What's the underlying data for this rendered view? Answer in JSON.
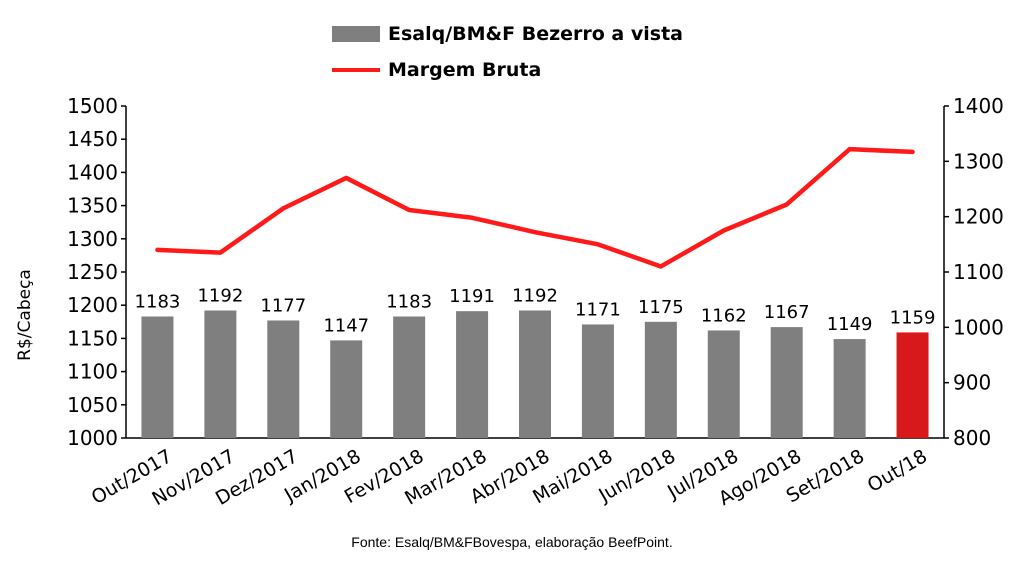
{
  "chart_data": {
    "type": "bar",
    "categories": [
      "Out/2017",
      "Nov/2017",
      "Dez/2017",
      "Jan/2018",
      "Fev/2018",
      "Mar/2018",
      "Abr/2018",
      "Mai/2018",
      "Jun/2018",
      "Jul/2018",
      "Ago/2018",
      "Set/2018",
      "Out/18"
    ],
    "series": [
      {
        "name": "Esalq/BM&F Bezerro a vista",
        "type": "bar",
        "axis": "left",
        "color": "#7f7f7f",
        "highlight_color": "#d7191c",
        "highlight_index": 12,
        "values": [
          1183,
          1192,
          1177,
          1147,
          1183,
          1191,
          1192,
          1171,
          1175,
          1162,
          1167,
          1149,
          1159
        ]
      },
      {
        "name": "Margem Bruta",
        "type": "line",
        "axis": "right",
        "color": "#ff1a1a",
        "values": [
          1140,
          1135,
          1215,
          1270,
          1212,
          1198,
          1172,
          1150,
          1110,
          1175,
          1222,
          1322,
          1317
        ]
      }
    ],
    "ylabel": "R$/Cabeça",
    "ylim": [
      1000,
      1500
    ],
    "yticks": [
      1000,
      1050,
      1100,
      1150,
      1200,
      1250,
      1300,
      1350,
      1400,
      1450,
      1500
    ],
    "y2lim": [
      800,
      1400
    ],
    "y2ticks": [
      800,
      900,
      1000,
      1100,
      1200,
      1300,
      1400
    ],
    "grid": false,
    "legend_position": "top-center"
  },
  "source": "Fonte: Esalq/BM&FBovespa, elaboração BeefPoint."
}
